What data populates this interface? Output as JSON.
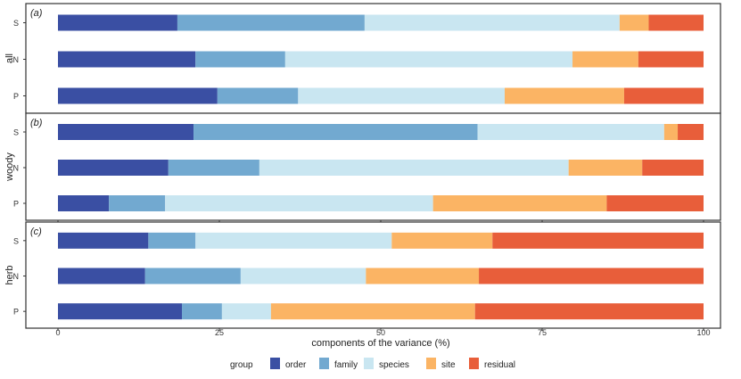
{
  "chart_data": {
    "type": "bar",
    "orientation": "horizontal",
    "stacked": true,
    "xlabel": "components of the variance (%)",
    "xlim": [
      0,
      100
    ],
    "xticks": [
      "0",
      "25",
      "50",
      "75",
      "100"
    ],
    "xtick_values": [
      0,
      25,
      50,
      75,
      100
    ],
    "legend": {
      "title": "group",
      "placement": "bottom",
      "entries": [
        {
          "name": "order",
          "color": "#3A4FA3"
        },
        {
          "name": "family",
          "color": "#72A9D0"
        },
        {
          "name": "species",
          "color": "#C9E6F1"
        },
        {
          "name": "site",
          "color": "#FBB464"
        },
        {
          "name": "residual",
          "color": "#E85E3A"
        }
      ]
    },
    "panels": [
      {
        "tag": "(a)",
        "ylabel": "all",
        "categories": [
          "S",
          "N",
          "P"
        ],
        "series": [
          {
            "name": "order",
            "values": [
              18.5,
              21.3,
              24.7
            ]
          },
          {
            "name": "family",
            "values": [
              29.0,
              13.9,
              12.5
            ]
          },
          {
            "name": "species",
            "values": [
              39.5,
              44.5,
              32.0
            ]
          },
          {
            "name": "site",
            "values": [
              4.5,
              10.2,
              18.5
            ]
          },
          {
            "name": "residual",
            "values": [
              8.5,
              10.1,
              12.3
            ]
          }
        ]
      },
      {
        "tag": "(b)",
        "ylabel": "woody",
        "categories": [
          "S",
          "N",
          "P"
        ],
        "series": [
          {
            "name": "order",
            "values": [
              21.0,
              17.1,
              7.9
            ]
          },
          {
            "name": "family",
            "values": [
              44.0,
              14.1,
              8.7
            ]
          },
          {
            "name": "species",
            "values": [
              28.9,
              47.9,
              41.5
            ]
          },
          {
            "name": "site",
            "values": [
              2.1,
              11.4,
              26.9
            ]
          },
          {
            "name": "residual",
            "values": [
              4.0,
              9.5,
              15.0
            ]
          }
        ]
      },
      {
        "tag": "(c)",
        "ylabel": "herb",
        "categories": [
          "S",
          "N",
          "P"
        ],
        "series": [
          {
            "name": "order",
            "values": [
              14.0,
              13.5,
              19.2
            ]
          },
          {
            "name": "family",
            "values": [
              7.3,
              14.8,
              6.2
            ]
          },
          {
            "name": "species",
            "values": [
              30.4,
              19.4,
              7.6
            ]
          },
          {
            "name": "site",
            "values": [
              15.6,
              17.5,
              31.6
            ]
          },
          {
            "name": "residual",
            "values": [
              32.7,
              34.8,
              35.4
            ]
          }
        ]
      }
    ]
  }
}
